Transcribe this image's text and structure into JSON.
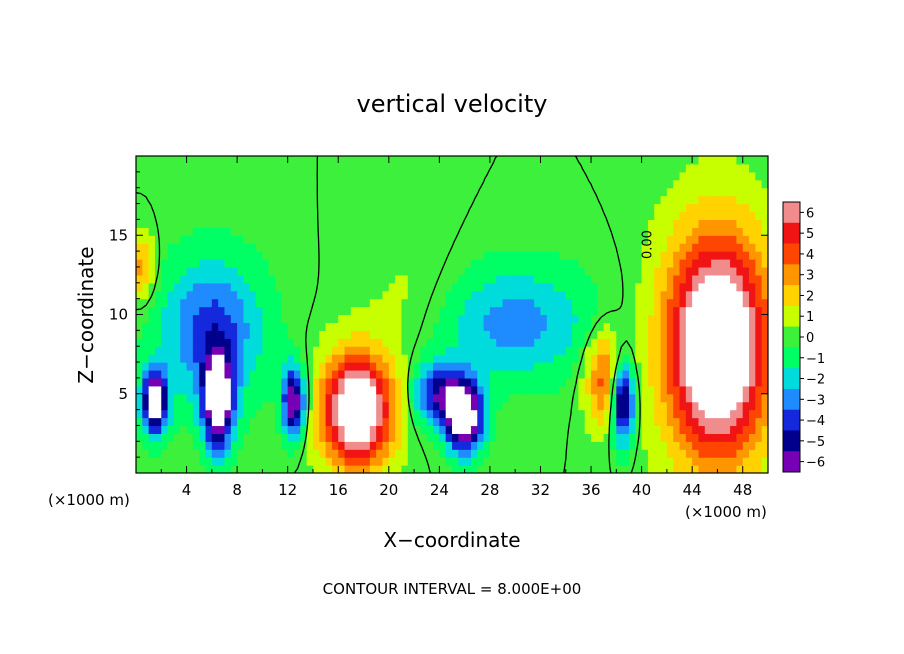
{
  "chart_data": {
    "type": "heatmap",
    "title": "vertical velocity",
    "xlabel": "X−coordinate",
    "ylabel": "Z−coordinate",
    "x_unit_left": "(×1000 m)",
    "x_unit_right": "(×1000 m)",
    "xlim": [
      0,
      50
    ],
    "ylim": [
      0,
      20
    ],
    "x_ticks": [
      4,
      8,
      12,
      16,
      20,
      24,
      28,
      32,
      36,
      40,
      44,
      48
    ],
    "y_ticks": [
      5,
      10,
      15
    ],
    "colorbar": {
      "levels": [
        6,
        5,
        4,
        3,
        2,
        1,
        0,
        -1,
        -2,
        -3,
        -4,
        -5,
        -6
      ],
      "tick_labels": [
        "6",
        "5",
        "4",
        "3",
        "2",
        "1",
        "0",
        "−1",
        "−2",
        "−3",
        "−4",
        "−5",
        "−6"
      ],
      "colors": [
        "#f08c8c",
        "#f01414",
        "#ff4600",
        "#ff9600",
        "#ffd200",
        "#c8ff00",
        "#3cf03c",
        "#00ff64",
        "#00dcdc",
        "#1e8cff",
        "#1428dc",
        "#00008c",
        "#7800b4"
      ]
    },
    "contour_label": "0.00",
    "footer": "CONTOUR INTERVAL = 8.000E+00",
    "features": [
      {
        "x": 1.5,
        "z": 4.5,
        "w": -8,
        "rx": 1.0,
        "rz": 2.0
      },
      {
        "x": 6.5,
        "z": 4.5,
        "w": -8,
        "rx": 1.2,
        "rz": 3.0
      },
      {
        "x": 12.5,
        "z": 4.5,
        "w": -7,
        "rx": 0.9,
        "rz": 2.2
      },
      {
        "x": 6.0,
        "z": 9.0,
        "w": -4,
        "rx": 4.0,
        "rz": 4.5
      },
      {
        "x": 17.5,
        "z": 4.0,
        "w": 9,
        "rx": 2.8,
        "rz": 3.5
      },
      {
        "x": 26.0,
        "z": 3.5,
        "w": -8,
        "rx": 1.5,
        "rz": 2.2
      },
      {
        "x": 24.0,
        "z": 5.0,
        "w": -5,
        "rx": 2.0,
        "rz": 2.0
      },
      {
        "x": 30.0,
        "z": 9.5,
        "w": -3,
        "rx": 6.0,
        "rz": 3.5
      },
      {
        "x": 37.0,
        "z": 6.0,
        "w": 4,
        "rx": 1.5,
        "rz": 3.0
      },
      {
        "x": 38.5,
        "z": 4.5,
        "w": -7,
        "rx": 0.9,
        "rz": 2.5
      },
      {
        "x": 46.0,
        "z": 8.0,
        "w": 10,
        "rx": 4.0,
        "rz": 7.0
      },
      {
        "x": 0.5,
        "z": 13.0,
        "w": 3,
        "rx": 1.0,
        "rz": 2.0
      },
      {
        "x": 22.0,
        "z": 11.0,
        "w": 0.8,
        "rx": 4.0,
        "rz": 4.0
      }
    ]
  }
}
